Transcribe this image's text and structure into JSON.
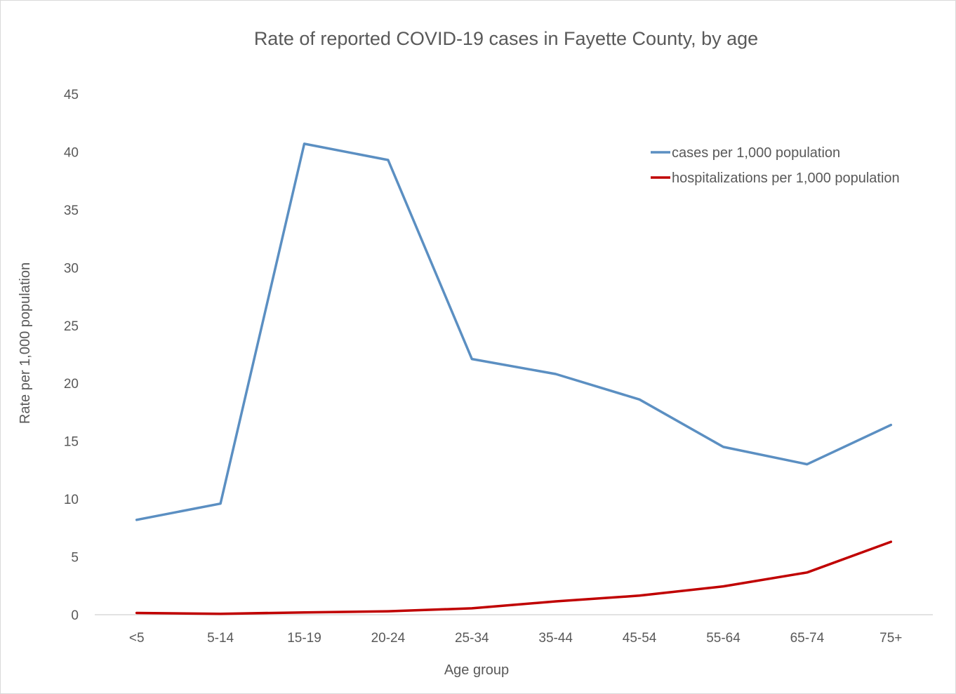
{
  "chart_data": {
    "type": "line",
    "title": "Rate of reported COVID-19 cases in Fayette County, by age",
    "xlabel": "Age group",
    "ylabel": "Rate per 1,000 population",
    "categories": [
      "<5",
      "5-14",
      "15-19",
      "20-24",
      "25-34",
      "35-44",
      "45-54",
      "55-64",
      "65-74",
      "75+"
    ],
    "ylim": [
      0,
      45
    ],
    "yticks": [
      "0",
      "5",
      "10",
      "15",
      "20",
      "25",
      "30",
      "35",
      "40",
      "45"
    ],
    "grid": false,
    "legend_position": "top-right",
    "series": [
      {
        "name": "cases per 1,000 population",
        "color": "#5B8FC2",
        "values": [
          8.2,
          9.6,
          40.7,
          39.3,
          22.1,
          20.8,
          18.6,
          14.5,
          13.0,
          16.4
        ]
      },
      {
        "name": "hospitalizations per 1,000 population",
        "color": "#C00000",
        "values": [
          0.15,
          0.08,
          0.2,
          0.3,
          0.55,
          1.15,
          1.65,
          2.45,
          3.65,
          6.3
        ]
      }
    ]
  }
}
